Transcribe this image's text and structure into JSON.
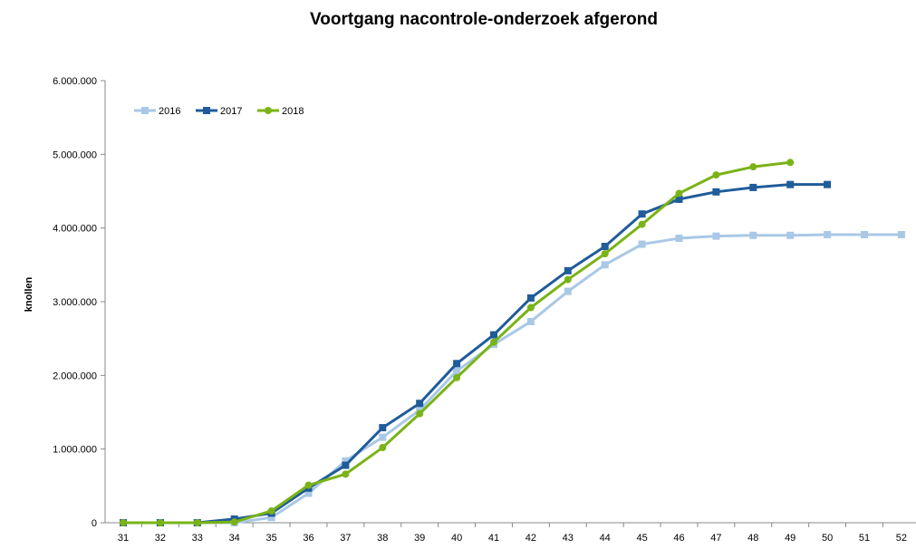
{
  "chart_data": {
    "type": "line",
    "title": "Voortgang nacontrole-onderzoek afgerond",
    "xlabel": "",
    "ylabel": "knollen",
    "x": [
      31,
      32,
      33,
      34,
      35,
      36,
      37,
      38,
      39,
      40,
      41,
      42,
      43,
      44,
      45,
      46,
      47,
      48,
      49,
      50,
      51,
      52
    ],
    "ylim": [
      0,
      6000000
    ],
    "yticks": [
      0,
      1000000,
      2000000,
      3000000,
      4000000,
      5000000,
      6000000
    ],
    "ytick_labels": [
      "0",
      "1.000.000",
      "2.000.000",
      "3.000.000",
      "4.000.000",
      "5.000.000",
      "6.000.000"
    ],
    "grid": false,
    "legend": "top-left",
    "series": [
      {
        "name": "2016",
        "color": "#A9C8E6",
        "marker": "square",
        "values": [
          0,
          0,
          0,
          0,
          70000,
          400000,
          840000,
          1160000,
          1530000,
          2060000,
          2420000,
          2730000,
          3140000,
          3500000,
          3780000,
          3860000,
          3890000,
          3900000,
          3900000,
          3910000,
          3910000,
          3910000
        ]
      },
      {
        "name": "2017",
        "color": "#1F5C99",
        "marker": "square",
        "values": [
          0,
          0,
          0,
          50000,
          130000,
          470000,
          780000,
          1290000,
          1620000,
          2160000,
          2550000,
          3050000,
          3420000,
          3750000,
          4190000,
          4390000,
          4490000,
          4550000,
          4590000,
          4590000,
          null,
          null
        ]
      },
      {
        "name": "2018",
        "color": "#7AB317",
        "marker": "circle",
        "values": [
          0,
          0,
          0,
          10000,
          160000,
          510000,
          660000,
          1020000,
          1480000,
          1970000,
          2450000,
          2920000,
          3300000,
          3650000,
          4050000,
          4470000,
          4720000,
          4830000,
          4890000,
          null,
          null,
          null
        ]
      }
    ]
  }
}
